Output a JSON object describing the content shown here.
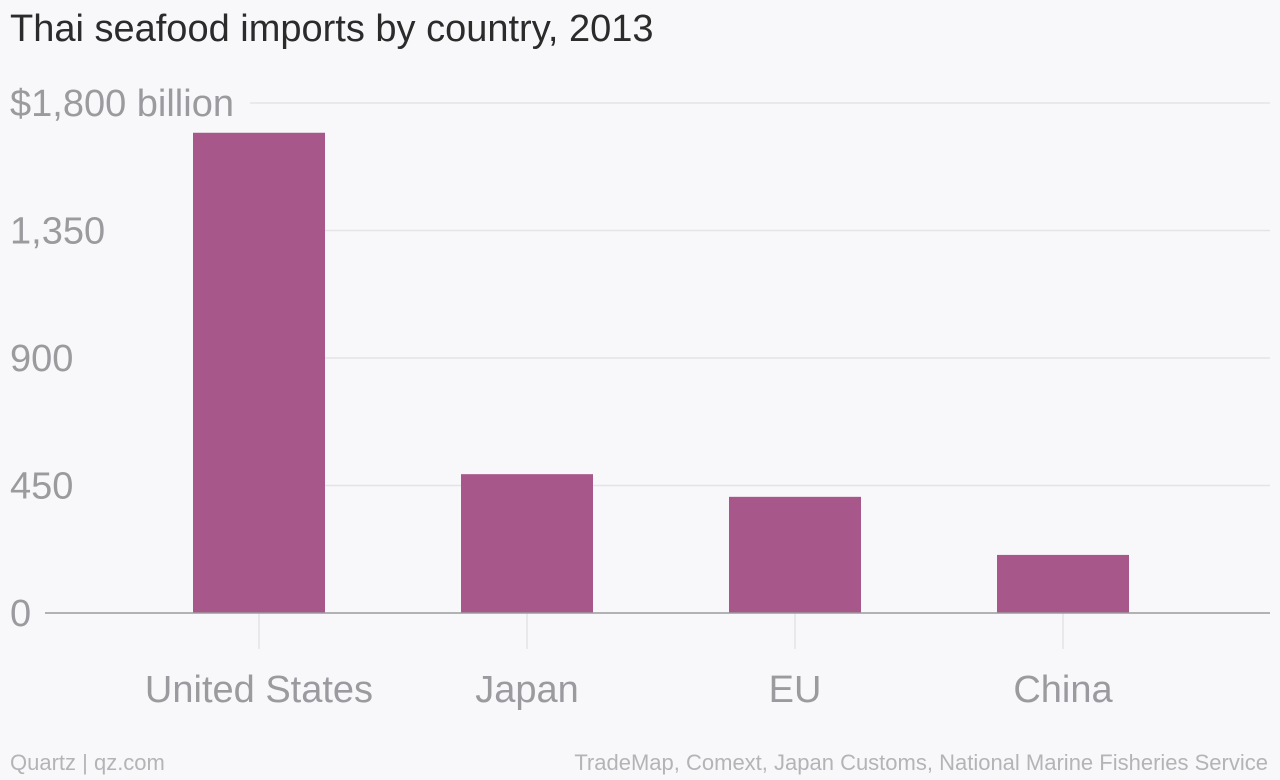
{
  "chart_data": {
    "type": "bar",
    "title": "Thai seafood imports by country, 2013",
    "categories": [
      "United States",
      "Japan",
      "EU",
      "China"
    ],
    "values": [
      1695,
      490,
      410,
      205
    ],
    "ylim": [
      0,
      1800
    ],
    "yticks": [
      0,
      450,
      900,
      1350,
      1800
    ],
    "ytick_labels": [
      "0",
      "450",
      "900",
      "1,350",
      "$1,800 billion"
    ],
    "xlabel": "",
    "ylabel": "",
    "grid": true,
    "bar_color": "#a8578a",
    "legend": "none"
  },
  "footer": {
    "credit": "Quartz | qz.com",
    "source": "TradeMap, Comext, Japan Customs, National Marine Fisheries Service"
  }
}
